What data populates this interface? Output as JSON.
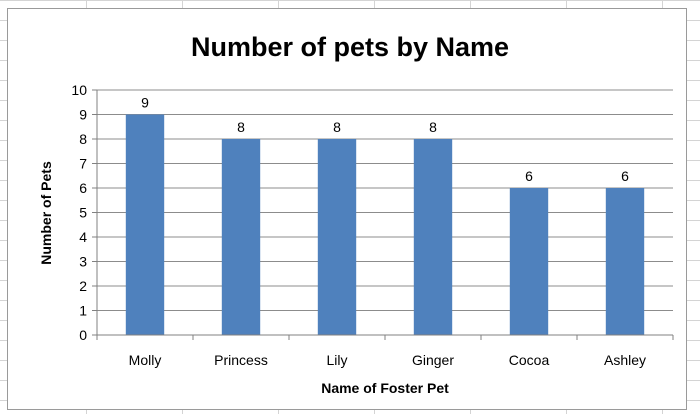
{
  "chart_data": {
    "type": "bar",
    "title": "Number of pets by Name",
    "xlabel": "Name of Foster Pet",
    "ylabel": "Number of Pets",
    "categories": [
      "Molly",
      "Princess",
      "Lily",
      "Ginger",
      "Cocoa",
      "Ashley"
    ],
    "values": [
      9,
      8,
      8,
      8,
      6,
      6
    ],
    "ylim": [
      0,
      10
    ],
    "yticks": [
      "0",
      "1",
      "2",
      "3",
      "4",
      "5",
      "6",
      "7",
      "8",
      "9",
      "10"
    ],
    "grid": true,
    "legend": "none",
    "bar_color": "#4f81bd"
  }
}
